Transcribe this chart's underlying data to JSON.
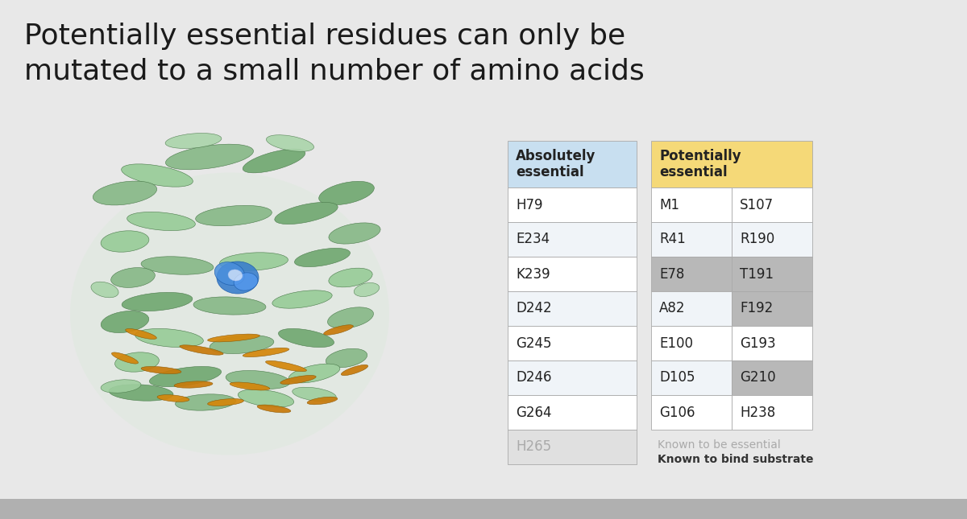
{
  "title_line1": "Potentially essential residues can only be",
  "title_line2": "mutated to a small number of amino acids",
  "title_fontsize": 26,
  "title_color": "#1a1a1a",
  "background_color": "#e8e8e8",
  "abs_header": "Absolutely\nessential",
  "pot_header": "Potentially\nessential",
  "abs_header_bg": "#c8dff0",
  "pot_header_bg": "#f5d978",
  "abs_rows": [
    "H79",
    "E234",
    "K239",
    "D242",
    "G245",
    "D246",
    "G264",
    "H265"
  ],
  "abs_row_faded": [
    false,
    false,
    false,
    false,
    false,
    false,
    false,
    true
  ],
  "pot_col1": [
    "M1",
    "R41",
    "E78",
    "A82",
    "E100",
    "D105",
    "G106"
  ],
  "pot_col2": [
    "S107",
    "R190",
    "T191",
    "F192",
    "G193",
    "G210",
    "H238"
  ],
  "pot_col1_shaded": [
    false,
    false,
    true,
    false,
    false,
    false,
    false
  ],
  "pot_col2_shaded": [
    false,
    false,
    true,
    true,
    false,
    true,
    false
  ],
  "shaded_bg": "#b8b8b8",
  "normal_bg": "#ffffff",
  "alt_bg": "#f0f4f8",
  "faded_bg": "#e0e0e0",
  "cell_text_color": "#222222",
  "faded_text_color": "#aaaaaa",
  "border_color": "#aaaaaa",
  "legend_essential_color": "#aaaaaa",
  "legend_substrate_color": "#333333",
  "legend_essential_text": "Known to be essential",
  "legend_substrate_text": "Known to bind substrate",
  "cell_fontsize": 12,
  "header_fontsize": 12
}
